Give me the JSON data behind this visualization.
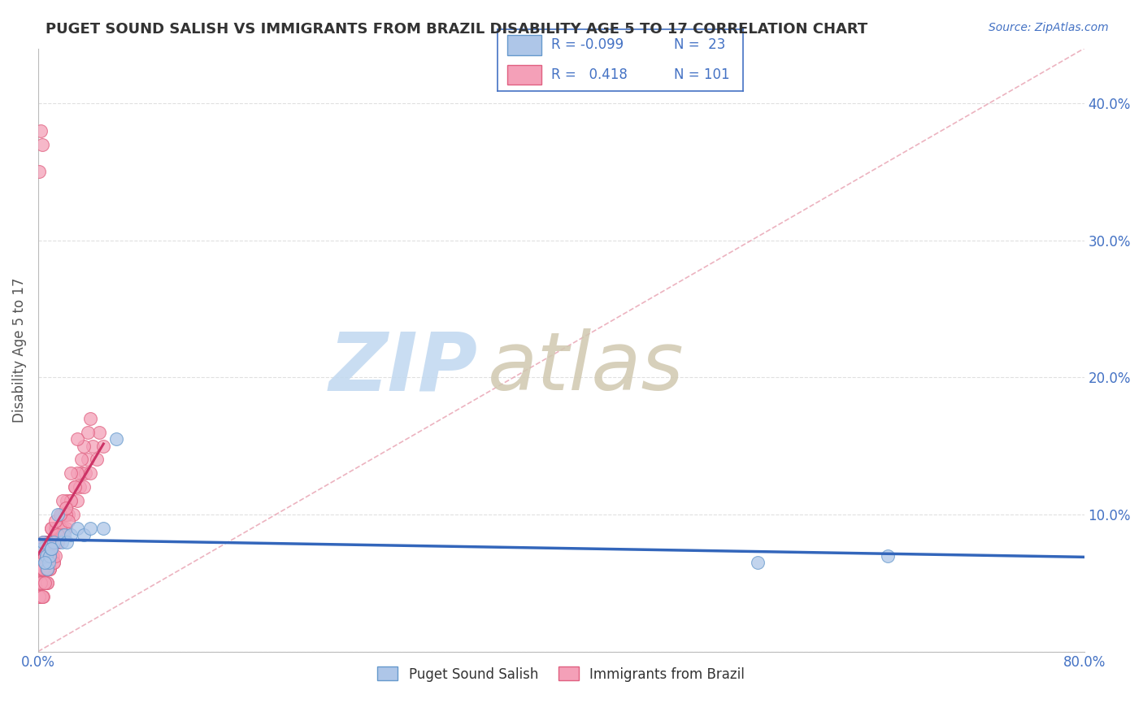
{
  "title": "PUGET SOUND SALISH VS IMMIGRANTS FROM BRAZIL DISABILITY AGE 5 TO 17 CORRELATION CHART",
  "source_text": "Source: ZipAtlas.com",
  "ylabel": "Disability Age 5 to 17",
  "xlim": [
    0.0,
    0.8
  ],
  "ylim": [
    0.0,
    0.44
  ],
  "x_ticks": [
    0.0,
    0.1,
    0.2,
    0.3,
    0.4,
    0.5,
    0.6,
    0.7,
    0.8
  ],
  "y_ticks": [
    0.0,
    0.1,
    0.2,
    0.3,
    0.4
  ],
  "background_color": "#ffffff",
  "grid_color": "#dddddd",
  "watermark_zip": "ZIP",
  "watermark_atlas": "atlas",
  "watermark_color_zip": "#c0d8f0",
  "watermark_color_atlas": "#d0c8b0",
  "legend_R1": "-0.099",
  "legend_N1": "23",
  "legend_R2": "0.418",
  "legend_N2": "101",
  "color_salish": "#aec6e8",
  "color_salish_edge": "#6699cc",
  "color_brazil": "#f4a0b8",
  "color_brazil_edge": "#e06080",
  "color_salish_line": "#3366bb",
  "color_brazil_line": "#cc3366",
  "color_diag": "#e8a0b0",
  "title_color": "#333333",
  "axis_label_color": "#555555",
  "tick_color": "#4472c4",
  "legend_text_color": "#4472c4",
  "legend_border_color": "#4472c4",
  "salish_x": [
    0.003,
    0.004,
    0.005,
    0.006,
    0.007,
    0.008,
    0.009,
    0.01,
    0.012,
    0.015,
    0.018,
    0.02,
    0.022,
    0.025,
    0.03,
    0.035,
    0.04,
    0.05,
    0.06,
    0.55,
    0.65,
    0.005,
    0.01
  ],
  "salish_y": [
    0.075,
    0.08,
    0.065,
    0.07,
    0.06,
    0.065,
    0.07,
    0.075,
    0.08,
    0.1,
    0.08,
    0.085,
    0.08,
    0.085,
    0.09,
    0.085,
    0.09,
    0.09,
    0.155,
    0.065,
    0.07,
    0.065,
    0.075
  ],
  "brazil_x": [
    0.001,
    0.001,
    0.001,
    0.002,
    0.002,
    0.002,
    0.003,
    0.003,
    0.003,
    0.004,
    0.004,
    0.004,
    0.005,
    0.005,
    0.005,
    0.006,
    0.006,
    0.006,
    0.007,
    0.007,
    0.007,
    0.008,
    0.008,
    0.008,
    0.009,
    0.009,
    0.01,
    0.01,
    0.01,
    0.011,
    0.012,
    0.012,
    0.013,
    0.013,
    0.014,
    0.015,
    0.015,
    0.016,
    0.017,
    0.018,
    0.019,
    0.02,
    0.021,
    0.022,
    0.023,
    0.025,
    0.027,
    0.028,
    0.03,
    0.032,
    0.033,
    0.035,
    0.036,
    0.038,
    0.04,
    0.042,
    0.045,
    0.047,
    0.05,
    0.001,
    0.002,
    0.003,
    0.004,
    0.005,
    0.006,
    0.007,
    0.008,
    0.009,
    0.01,
    0.012,
    0.013,
    0.015,
    0.017,
    0.019,
    0.021,
    0.023,
    0.025,
    0.028,
    0.03,
    0.033,
    0.035,
    0.038,
    0.04,
    0.001,
    0.002,
    0.003,
    0.004,
    0.005,
    0.006,
    0.007,
    0.008,
    0.009,
    0.01,
    0.012,
    0.013,
    0.015,
    0.017,
    0.019,
    0.021,
    0.025,
    0.03
  ],
  "brazil_y": [
    0.04,
    0.06,
    0.05,
    0.04,
    0.06,
    0.05,
    0.05,
    0.07,
    0.06,
    0.04,
    0.06,
    0.05,
    0.05,
    0.07,
    0.08,
    0.06,
    0.08,
    0.07,
    0.05,
    0.07,
    0.06,
    0.06,
    0.08,
    0.07,
    0.06,
    0.08,
    0.07,
    0.09,
    0.08,
    0.07,
    0.08,
    0.065,
    0.08,
    0.09,
    0.09,
    0.09,
    0.08,
    0.09,
    0.09,
    0.1,
    0.09,
    0.1,
    0.09,
    0.11,
    0.1,
    0.11,
    0.1,
    0.12,
    0.11,
    0.12,
    0.13,
    0.12,
    0.13,
    0.14,
    0.13,
    0.15,
    0.14,
    0.16,
    0.15,
    0.35,
    0.38,
    0.37,
    0.08,
    0.07,
    0.06,
    0.05,
    0.07,
    0.06,
    0.075,
    0.065,
    0.07,
    0.08,
    0.09,
    0.085,
    0.1,
    0.095,
    0.11,
    0.12,
    0.13,
    0.14,
    0.15,
    0.16,
    0.17,
    0.04,
    0.05,
    0.04,
    0.06,
    0.05,
    0.07,
    0.06,
    0.08,
    0.07,
    0.09,
    0.08,
    0.095,
    0.085,
    0.1,
    0.11,
    0.105,
    0.13,
    0.155
  ]
}
